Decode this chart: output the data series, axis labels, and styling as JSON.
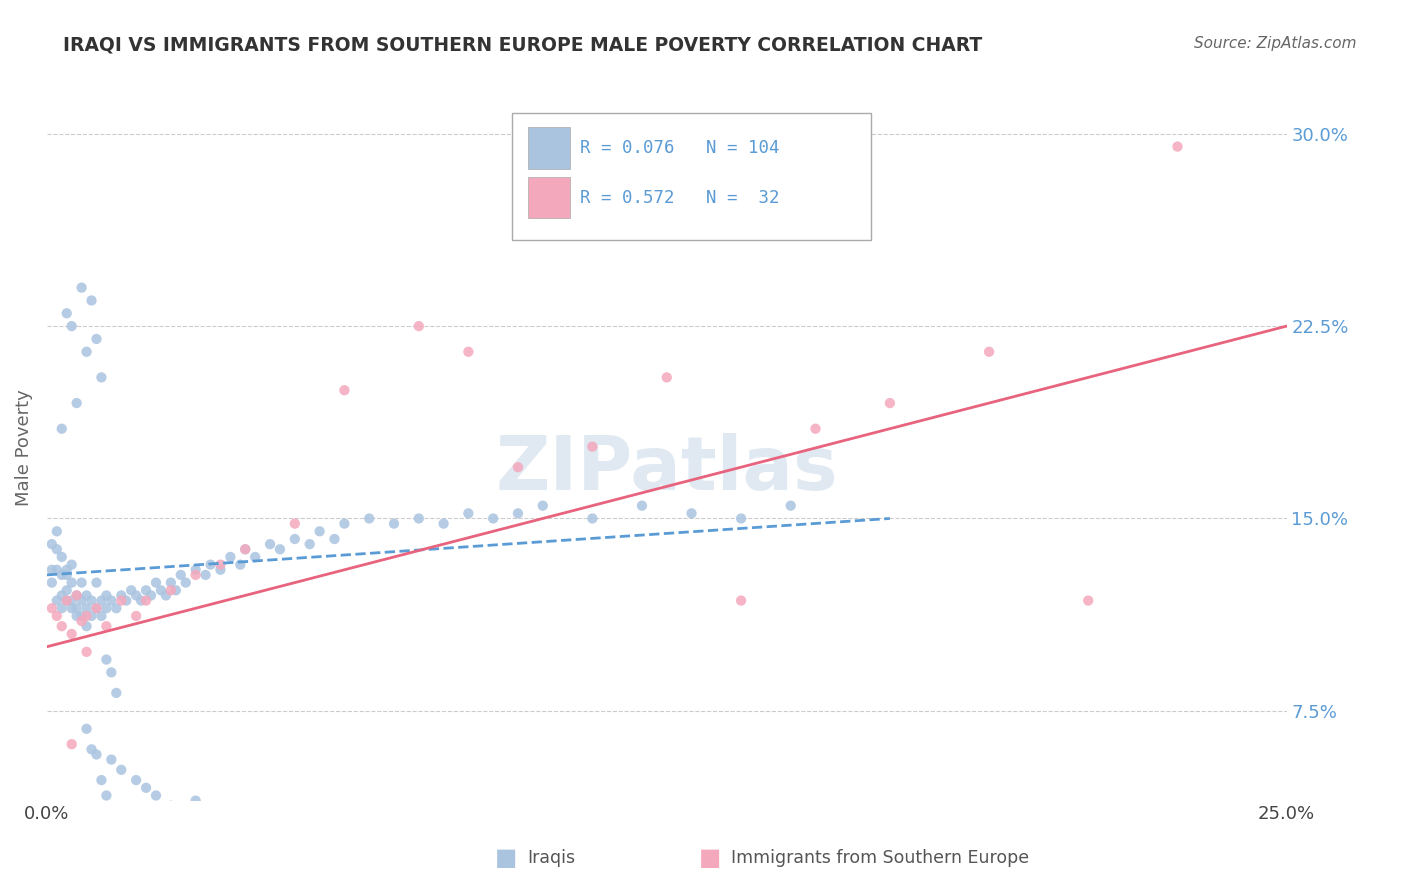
{
  "title": "IRAQI VS IMMIGRANTS FROM SOUTHERN EUROPE MALE POVERTY CORRELATION CHART",
  "source": "Source: ZipAtlas.com",
  "ylabel": "Male Poverty",
  "xlim": [
    0.0,
    0.25
  ],
  "ylim": [
    0.04,
    0.315
  ],
  "yticks": [
    0.075,
    0.15,
    0.225,
    0.3
  ],
  "ytick_labels": [
    "7.5%",
    "15.0%",
    "22.5%",
    "30.0%"
  ],
  "xtick_labels": [
    "0.0%",
    "25.0%"
  ],
  "series1_color": "#aac4e0",
  "series2_color": "#f4a8bc",
  "line1_color": "#5b9bd5",
  "line2_color": "#e8637d",
  "background_color": "#ffffff",
  "watermark": "ZIPatlas",
  "iraqis_x": [
    0.001,
    0.001,
    0.001,
    0.002,
    0.002,
    0.002,
    0.002,
    0.003,
    0.003,
    0.003,
    0.003,
    0.004,
    0.004,
    0.004,
    0.004,
    0.005,
    0.005,
    0.005,
    0.005,
    0.006,
    0.006,
    0.006,
    0.007,
    0.007,
    0.007,
    0.008,
    0.008,
    0.008,
    0.009,
    0.009,
    0.01,
    0.01,
    0.011,
    0.011,
    0.012,
    0.012,
    0.013,
    0.014,
    0.015,
    0.016,
    0.017,
    0.018,
    0.019,
    0.02,
    0.021,
    0.022,
    0.023,
    0.024,
    0.025,
    0.026,
    0.027,
    0.028,
    0.03,
    0.032,
    0.033,
    0.035,
    0.037,
    0.039,
    0.04,
    0.042,
    0.045,
    0.047,
    0.05,
    0.053,
    0.055,
    0.058,
    0.06,
    0.065,
    0.07,
    0.075,
    0.08,
    0.085,
    0.09,
    0.095,
    0.1,
    0.11,
    0.12,
    0.13,
    0.14,
    0.15,
    0.003,
    0.004,
    0.005,
    0.006,
    0.007,
    0.008,
    0.009,
    0.01,
    0.011,
    0.012,
    0.013,
    0.014,
    0.008,
    0.009,
    0.01,
    0.011,
    0.012,
    0.013,
    0.015,
    0.018,
    0.02,
    0.022,
    0.025,
    0.03
  ],
  "iraqis_y": [
    0.13,
    0.14,
    0.125,
    0.118,
    0.13,
    0.145,
    0.138,
    0.12,
    0.128,
    0.115,
    0.135,
    0.122,
    0.13,
    0.118,
    0.128,
    0.115,
    0.125,
    0.118,
    0.132,
    0.112,
    0.12,
    0.115,
    0.118,
    0.125,
    0.112,
    0.12,
    0.115,
    0.108,
    0.118,
    0.112,
    0.115,
    0.125,
    0.118,
    0.112,
    0.12,
    0.115,
    0.118,
    0.115,
    0.12,
    0.118,
    0.122,
    0.12,
    0.118,
    0.122,
    0.12,
    0.125,
    0.122,
    0.12,
    0.125,
    0.122,
    0.128,
    0.125,
    0.13,
    0.128,
    0.132,
    0.13,
    0.135,
    0.132,
    0.138,
    0.135,
    0.14,
    0.138,
    0.142,
    0.14,
    0.145,
    0.142,
    0.148,
    0.15,
    0.148,
    0.15,
    0.148,
    0.152,
    0.15,
    0.152,
    0.155,
    0.15,
    0.155,
    0.152,
    0.15,
    0.155,
    0.185,
    0.23,
    0.225,
    0.195,
    0.24,
    0.215,
    0.235,
    0.22,
    0.205,
    0.095,
    0.09,
    0.082,
    0.068,
    0.06,
    0.058,
    0.048,
    0.042,
    0.056,
    0.052,
    0.048,
    0.045,
    0.042,
    0.038,
    0.04
  ],
  "southern_x": [
    0.001,
    0.002,
    0.003,
    0.004,
    0.005,
    0.006,
    0.007,
    0.008,
    0.01,
    0.012,
    0.015,
    0.018,
    0.02,
    0.025,
    0.03,
    0.035,
    0.04,
    0.05,
    0.06,
    0.075,
    0.085,
    0.095,
    0.11,
    0.125,
    0.14,
    0.155,
    0.17,
    0.19,
    0.21,
    0.228,
    0.005,
    0.008
  ],
  "southern_y": [
    0.115,
    0.112,
    0.108,
    0.118,
    0.105,
    0.12,
    0.11,
    0.112,
    0.115,
    0.108,
    0.118,
    0.112,
    0.118,
    0.122,
    0.128,
    0.132,
    0.138,
    0.148,
    0.2,
    0.225,
    0.215,
    0.17,
    0.178,
    0.205,
    0.118,
    0.185,
    0.195,
    0.215,
    0.118,
    0.295,
    0.062,
    0.098
  ],
  "line1_x": [
    0.0,
    0.17
  ],
  "line1_y": [
    0.128,
    0.15
  ],
  "line2_x": [
    0.0,
    0.25
  ],
  "line2_y": [
    0.1,
    0.225
  ]
}
